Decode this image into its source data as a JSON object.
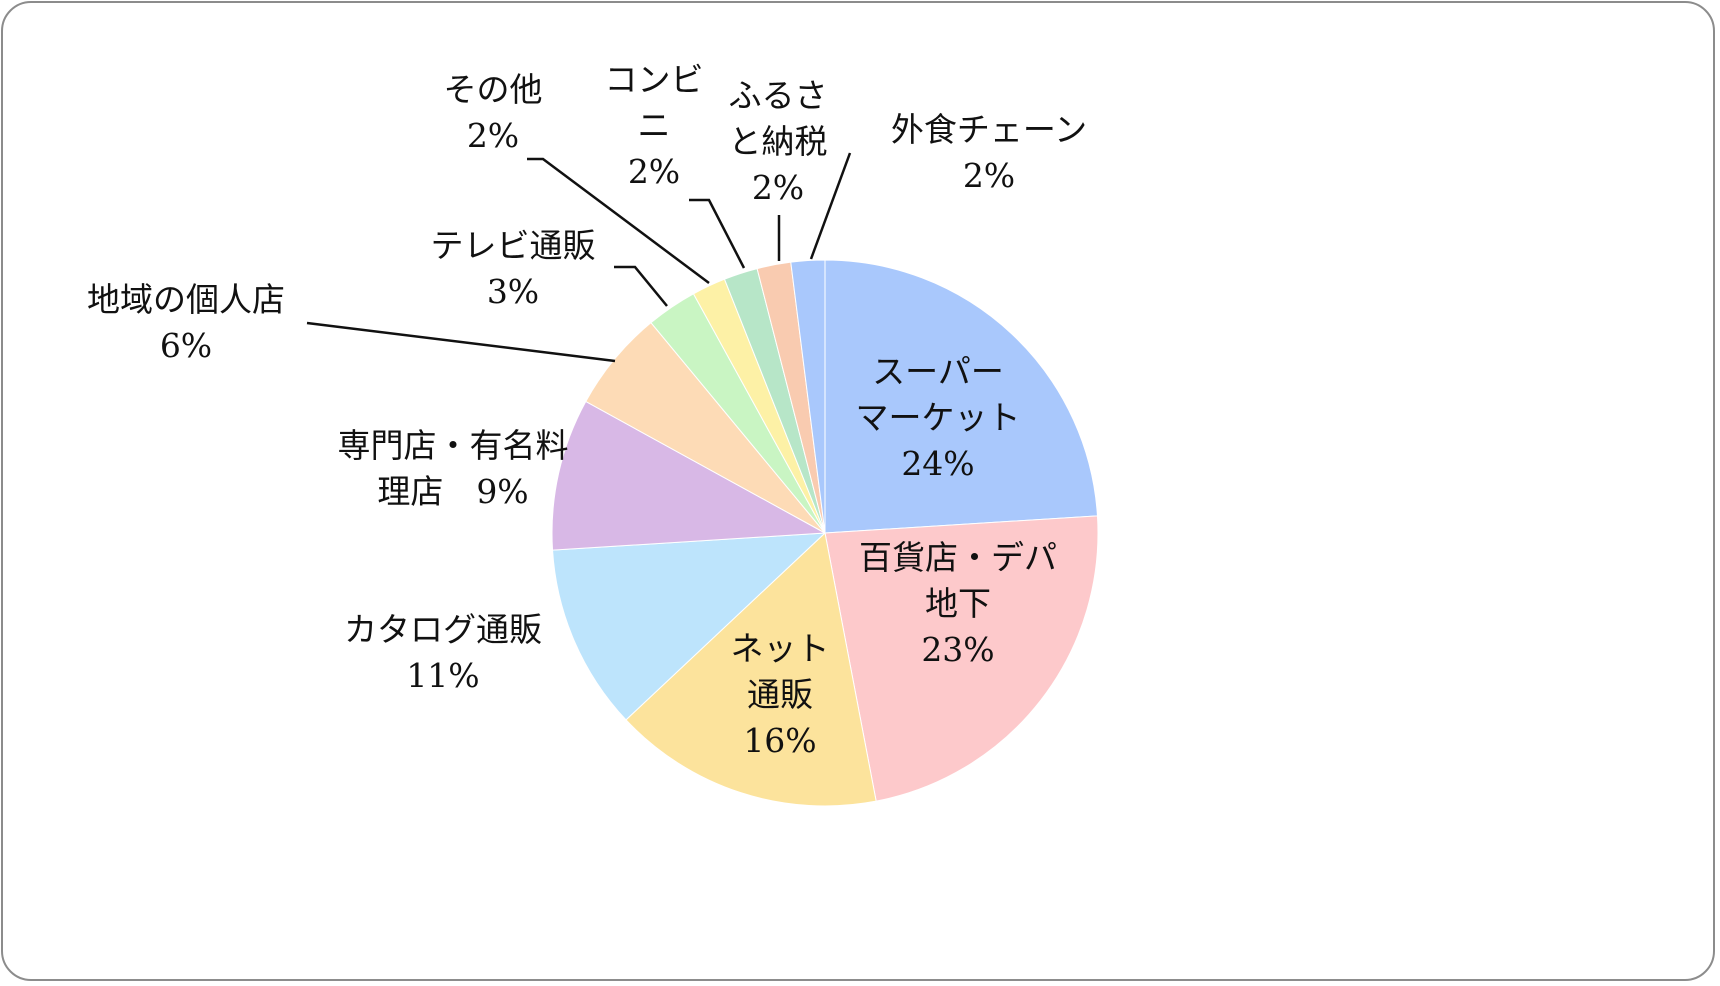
{
  "chart_data": {
    "type": "pie",
    "title": "",
    "unit": "%",
    "slices": [
      {
        "name": "スーパーマーケット",
        "value": 24,
        "value_label": "24%",
        "label_lines": [
          "スーパー",
          "マーケット",
          "24%"
        ],
        "color": "#a9c8fc"
      },
      {
        "name": "百貨店・デパ地下",
        "value": 23,
        "value_label": "23%",
        "label_lines": [
          "百貨店・デパ",
          "地下",
          "23%"
        ],
        "color": "#fdc9cb"
      },
      {
        "name": "ネット通販",
        "value": 16,
        "value_label": "16%",
        "label_lines": [
          "ネット",
          "通販",
          "16%"
        ],
        "color": "#fce39c"
      },
      {
        "name": "カタログ通販",
        "value": 11,
        "value_label": "11%",
        "label_lines": [
          "カタログ通販",
          "11%"
        ],
        "color": "#bde4fc"
      },
      {
        "name": "専門店・有名料理店",
        "value": 9,
        "value_label": "9%",
        "label_lines": [
          "専門店・有名料",
          "理店　9%"
        ],
        "color": "#d8b8e6"
      },
      {
        "name": "地域の個人店",
        "value": 6,
        "value_label": "6%",
        "label_lines": [
          "地域の個人店",
          "6%"
        ],
        "color": "#fddbb6"
      },
      {
        "name": "テレビ通販",
        "value": 3,
        "value_label": "3%",
        "label_lines": [
          "テレビ通販",
          "3%"
        ],
        "color": "#c9f5c3"
      },
      {
        "name": "その他",
        "value": 2,
        "value_label": "2%",
        "label_lines": [
          "その他",
          "2%"
        ],
        "color": "#fdf1a6"
      },
      {
        "name": "コンビニ",
        "value": 2,
        "value_label": "2%",
        "label_lines": [
          "コンビ",
          "ニ",
          "2%"
        ],
        "color": "#b7e6c8"
      },
      {
        "name": "ふるさと納税",
        "value": 2,
        "value_label": "2%",
        "label_lines": [
          "ふるさ",
          "と納税",
          "2%"
        ],
        "color": "#f9cbb0"
      },
      {
        "name": "外食チェーン",
        "value": 2,
        "value_label": "2%",
        "label_lines": [
          "外食チェーン",
          "2%"
        ],
        "color": "#a9c8fc"
      }
    ]
  }
}
